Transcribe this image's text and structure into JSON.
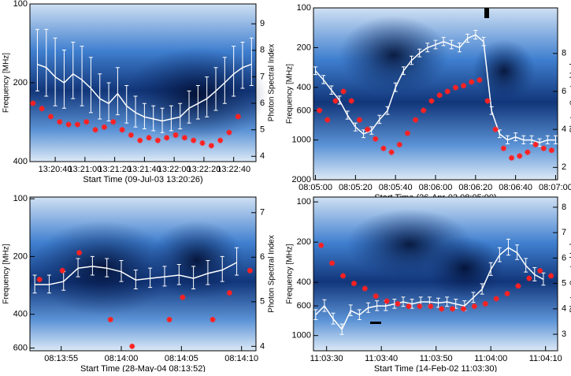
{
  "chart_data": [
    {
      "type": "line",
      "x_label": "Start Time (09-Jul-03 13:20:26)",
      "y_label": "Frequency [MHz]",
      "y2_label": "Photon Spectral Index",
      "xlim": [
        48023,
        48175
      ],
      "xticks": [
        {
          "value": 48040,
          "label": "13:20:40"
        },
        {
          "value": 48060,
          "label": "13:21:00"
        },
        {
          "value": 48080,
          "label": "13:21:20"
        },
        {
          "value": 48100,
          "label": "13:21:40"
        },
        {
          "value": 48120,
          "label": "13:22:00"
        },
        {
          "value": 48140,
          "label": "13:22:20"
        },
        {
          "value": 48160,
          "label": "13:22:40"
        }
      ],
      "ylim": [
        400,
        100
      ],
      "ylog": true,
      "yticks": [
        100,
        200,
        400
      ],
      "y2lim": [
        3.8,
        9.75
      ],
      "y2ticks": [
        4,
        5,
        6,
        7,
        8,
        9
      ],
      "series": [
        {
          "color": "#ffffff",
          "x": [
            48028,
            48034,
            48040,
            48046,
            48052,
            48058,
            48064,
            48070,
            48076,
            48082,
            48088,
            48094,
            48100,
            48106,
            48112,
            48118,
            48124,
            48130,
            48136,
            48142,
            48148,
            48154,
            48160,
            48166,
            48172
          ],
          "values": [
            170,
            175,
            190,
            200,
            185,
            195,
            210,
            230,
            240,
            220,
            245,
            260,
            270,
            275,
            280,
            275,
            270,
            250,
            240,
            230,
            215,
            200,
            185,
            175,
            170
          ],
          "errors": [
            45,
            50,
            55,
            50,
            45,
            50,
            50,
            45,
            40,
            45,
            40,
            35,
            30,
            30,
            30,
            30,
            30,
            35,
            35,
            40,
            40,
            40,
            40,
            35,
            35
          ]
        },
        {
          "color": "#ff2020",
          "axis": "y2",
          "x": [
            48025,
            48031,
            48037,
            48043,
            48049,
            48055,
            48061,
            48067,
            48073,
            48079,
            48085,
            48091,
            48097,
            48103,
            48109,
            48115,
            48121,
            48127,
            48133,
            48139,
            48145,
            48151,
            48157,
            48163
          ],
          "values": [
            6.0,
            5.8,
            5.5,
            5.3,
            5.2,
            5.2,
            5.3,
            5.0,
            5.1,
            5.3,
            5.0,
            4.8,
            4.6,
            4.7,
            4.6,
            4.7,
            4.8,
            4.7,
            4.6,
            4.5,
            4.4,
            4.6,
            4.9,
            5.5
          ]
        }
      ]
    },
    {
      "type": "line",
      "x_label": "Start Time (26-Apr-03 08:05:00)",
      "y_label": "Frequency [MHz]",
      "y2_label": "Photon Spectral Index",
      "xlim": [
        29099,
        29221
      ],
      "xticks": [
        {
          "value": 29100,
          "label": "08:05:00"
        },
        {
          "value": 29120,
          "label": "08:05:20"
        },
        {
          "value": 29140,
          "label": "08:05:40"
        },
        {
          "value": 29160,
          "label": "08:06:00"
        },
        {
          "value": 29180,
          "label": "08:06:20"
        },
        {
          "value": 29200,
          "label": "08:06:40"
        },
        {
          "value": 29220,
          "label": "08:07:00"
        }
      ],
      "ylim": [
        2000,
        100
      ],
      "ylog": true,
      "yticks": [
        100,
        200,
        400,
        600,
        1000,
        2000
      ],
      "y2lim": [
        1.35,
        10.4
      ],
      "y2ticks": [
        2,
        4,
        6,
        8
      ],
      "series": [
        {
          "color": "#ffffff",
          "x": [
            29100,
            29104,
            29108,
            29112,
            29116,
            29120,
            29124,
            29128,
            29132,
            29136,
            29140,
            29144,
            29148,
            29152,
            29156,
            29160,
            29164,
            29168,
            29172,
            29176,
            29180,
            29184,
            29188,
            29192,
            29196,
            29200,
            29204,
            29208,
            29212,
            29216,
            29220
          ],
          "values": [
            300,
            350,
            420,
            500,
            650,
            800,
            900,
            850,
            700,
            600,
            400,
            300,
            250,
            220,
            200,
            190,
            180,
            190,
            200,
            170,
            160,
            180,
            600,
            900,
            1000,
            950,
            1000,
            1000,
            1050,
            1000,
            1000
          ],
          "errors": [
            20,
            25,
            30,
            35,
            45,
            55,
            60,
            55,
            50,
            40,
            30,
            20,
            18,
            15,
            15,
            14,
            13,
            14,
            15,
            12,
            12,
            13,
            40,
            60,
            70,
            65,
            70,
            70,
            70,
            70,
            70
          ]
        },
        {
          "color": "#ff2020",
          "axis": "y2",
          "x": [
            29102,
            29106,
            29110,
            29114,
            29118,
            29122,
            29126,
            29130,
            29134,
            29138,
            29142,
            29146,
            29150,
            29154,
            29158,
            29162,
            29166,
            29170,
            29174,
            29178,
            29182,
            29186,
            29190,
            29194,
            29198,
            29202,
            29206,
            29210,
            29214,
            29218
          ],
          "values": [
            5.0,
            4.5,
            5.5,
            6.0,
            5.5,
            4.5,
            4.0,
            3.5,
            3.0,
            2.8,
            3.2,
            3.8,
            4.5,
            5.0,
            5.5,
            5.8,
            6.0,
            6.2,
            6.3,
            6.5,
            6.6,
            5.5,
            4.0,
            3.0,
            2.5,
            2.6,
            2.8,
            3.2,
            3.0,
            2.9
          ]
        }
      ]
    },
    {
      "type": "line",
      "x_label": "Start Time (28-May-04 08:13:52)",
      "y_label": "Frequency [MHz]",
      "y2_label": "Photon Spectral Index",
      "xlim": [
        29632.4,
        29651.2
      ],
      "xticks": [
        {
          "value": 29635,
          "label": "08:13:55"
        },
        {
          "value": 29640,
          "label": "08:14:00"
        },
        {
          "value": 29645,
          "label": "08:14:05"
        },
        {
          "value": 29650,
          "label": "08:14:10"
        }
      ],
      "ylim": [
        620,
        98
      ],
      "ylog": true,
      "yticks": [
        100,
        200,
        400,
        600
      ],
      "y2lim": [
        3.9,
        7.35
      ],
      "y2ticks": [
        4,
        5,
        6,
        7
      ],
      "series": [
        {
          "color": "#ffffff",
          "x": [
            29632.8,
            29634,
            29635.2,
            29636.4,
            29637.6,
            29638.8,
            29640,
            29641.2,
            29642.4,
            29643.6,
            29644.8,
            29646,
            29647.2,
            29648.4,
            29649.6
          ],
          "values": [
            280,
            280,
            270,
            230,
            225,
            230,
            240,
            265,
            260,
            255,
            250,
            260,
            245,
            235,
            215
          ],
          "errors": [
            30,
            30,
            30,
            25,
            25,
            25,
            30,
            30,
            30,
            30,
            30,
            35,
            35,
            35,
            35
          ]
        },
        {
          "color": "#ff2020",
          "axis": "y2",
          "x": [
            29633.2,
            29635.1,
            29636.5,
            29639.1,
            29640.9,
            29644.0,
            29645.1,
            29647.6,
            29649.0,
            29650.7
          ],
          "values": [
            5.5,
            5.7,
            6.1,
            4.6,
            4.0,
            4.6,
            5.1,
            4.6,
            5.2,
            5.7
          ]
        }
      ]
    },
    {
      "type": "line",
      "x_label": "Start Time (14-Feb-02 11:03:30)",
      "y_label": "Frequency [MHz]",
      "y2_label": "Photon Spectral Index",
      "xlim": [
        39807.6,
        39852.2
      ],
      "xticks": [
        {
          "value": 39810,
          "label": "11:03:30"
        },
        {
          "value": 39820,
          "label": "11:03:40"
        },
        {
          "value": 39830,
          "label": "11:03:50"
        },
        {
          "value": 39840,
          "label": "11:04:00"
        },
        {
          "value": 39850,
          "label": "11:04:10"
        }
      ],
      "ylim": [
        1300,
        92
      ],
      "ylog": true,
      "yticks": [
        100,
        200,
        400,
        600,
        1000
      ],
      "y2lim": [
        2.35,
        8.4
      ],
      "y2ticks": [
        3,
        4,
        5,
        6,
        7,
        8
      ],
      "series": [
        {
          "color": "#ffffff",
          "x": [
            39808,
            39809.6,
            39811.2,
            39812.8,
            39814.4,
            39816,
            39817.6,
            39819.2,
            39820.8,
            39822.4,
            39824,
            39825.6,
            39827.2,
            39828.8,
            39830.4,
            39832,
            39833.6,
            39835.2,
            39836.8,
            39838.4,
            39840,
            39841.6,
            39843.2,
            39844.8,
            39846.4,
            39848,
            39849.6
          ],
          "values": [
            700,
            600,
            750,
            900,
            650,
            700,
            620,
            600,
            600,
            580,
            560,
            580,
            560,
            560,
            570,
            560,
            580,
            600,
            520,
            450,
            320,
            250,
            220,
            240,
            300,
            350,
            380
          ],
          "errors": [
            60,
            60,
            70,
            80,
            60,
            60,
            50,
            50,
            50,
            45,
            45,
            45,
            45,
            45,
            45,
            45,
            45,
            50,
            45,
            40,
            35,
            30,
            30,
            30,
            35,
            40,
            40
          ]
        },
        {
          "color": "#ff2020",
          "axis": "y2",
          "x": [
            39809,
            39811,
            39813,
            39815,
            39817,
            39819,
            39821,
            39823,
            39825,
            39827,
            39829,
            39831,
            39833,
            39835,
            39837,
            39839,
            39841,
            39843,
            39845,
            39847,
            39849,
            39851
          ],
          "values": [
            6.5,
            5.8,
            5.3,
            5.0,
            4.8,
            4.5,
            4.3,
            4.2,
            4.1,
            4.1,
            4.1,
            4.0,
            4.0,
            4.0,
            4.1,
            4.2,
            4.4,
            4.6,
            4.9,
            5.2,
            5.5,
            5.3
          ]
        }
      ]
    }
  ]
}
